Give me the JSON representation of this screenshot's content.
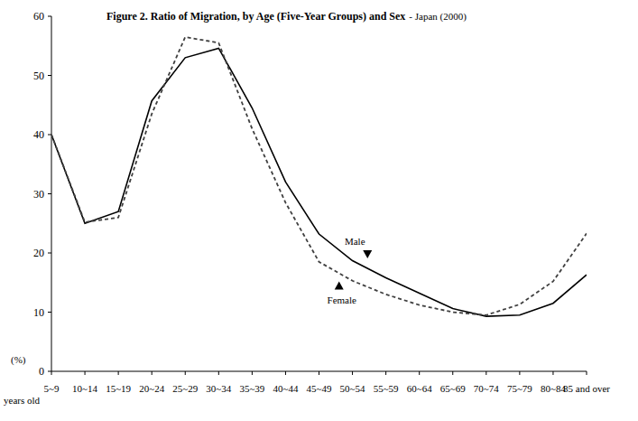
{
  "chart_data": {
    "type": "line",
    "title": "Figure 2. Ratio of Migration, by Age (Five-Year Groups) and Sex",
    "subtitle": "- Japan (2000)",
    "x_label": "years old",
    "y_label": "(%)",
    "categories": [
      "5~9",
      "10~14",
      "15~19",
      "20~24",
      "25~29",
      "30~34",
      "35~39",
      "40~44",
      "45~49",
      "50~54",
      "55~59",
      "60~64",
      "65~69",
      "70~74",
      "75~79",
      "80~84",
      "85 and over"
    ],
    "series": [
      {
        "name": "Male",
        "color": "#000000",
        "line_style": "solid",
        "values": [
          40,
          25,
          27,
          45.7,
          53,
          54.6,
          44.5,
          32,
          23.2,
          18.7,
          15.8,
          13.2,
          10.6,
          9.3,
          9.5,
          11.5,
          16.3
        ]
      },
      {
        "name": "Female",
        "color": "#404040",
        "line_style": "dashed",
        "values": [
          40,
          25.2,
          26,
          43.5,
          56.5,
          55.5,
          41,
          28.5,
          18.5,
          15.3,
          13,
          11.2,
          10,
          9.5,
          11.3,
          15.2,
          23.3
        ]
      }
    ],
    "ylim": [
      0,
      60
    ],
    "yticks": [
      0,
      10,
      20,
      30,
      40,
      50,
      60
    ],
    "grid": false
  }
}
